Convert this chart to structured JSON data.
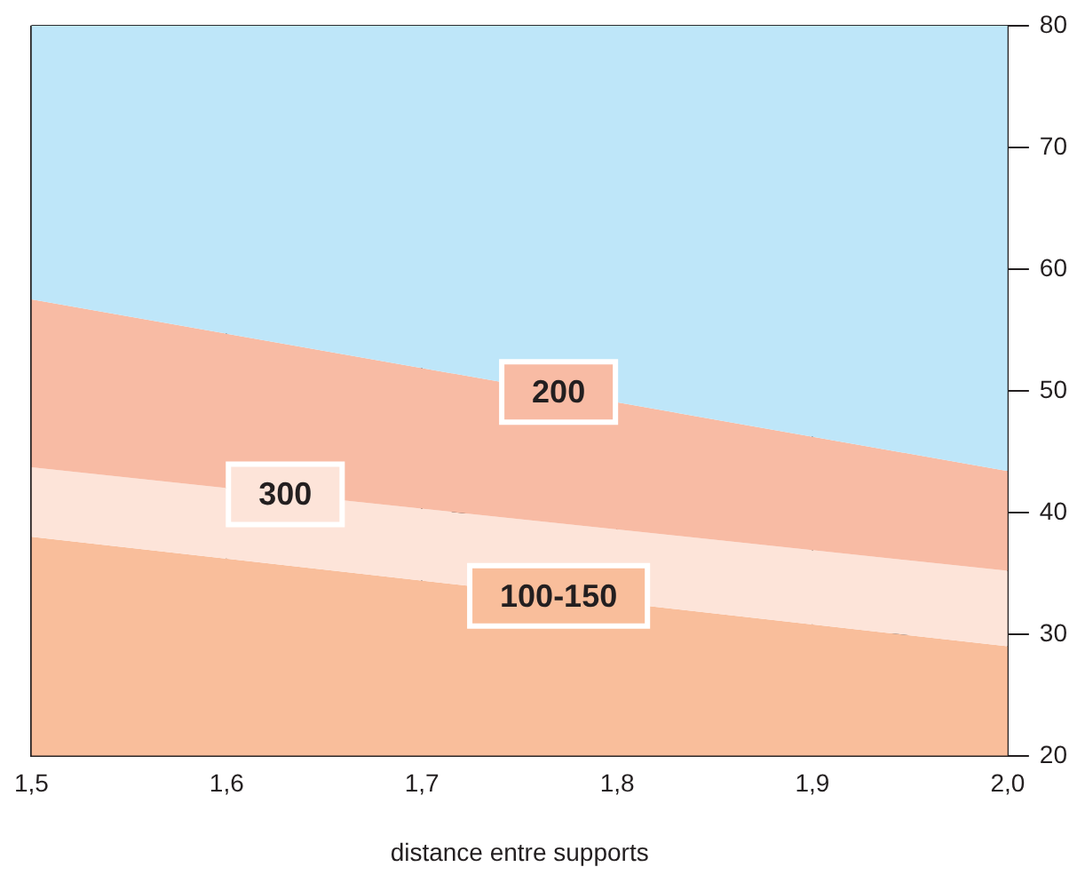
{
  "chart_data": {
    "type": "area",
    "xlabel": "distance entre supports",
    "x": [
      1.5,
      2.0
    ],
    "series": [
      {
        "name": "100-150",
        "color": "#f9be9b",
        "values": [
          38,
          29
        ]
      },
      {
        "name": "300",
        "color": "#fde4d9",
        "values": [
          43.7,
          35.2
        ]
      },
      {
        "name": "200",
        "color": "#f8bba4",
        "values": [
          57.5,
          43.4
        ]
      },
      {
        "color": "#bee6f9",
        "values": [
          80,
          80
        ]
      }
    ],
    "xlim": [
      1.5,
      2.0
    ],
    "xticks": [
      {
        "value": 1.5,
        "label": "1,5"
      },
      {
        "value": 1.6,
        "label": "1,6"
      },
      {
        "value": 1.7,
        "label": "1,7"
      },
      {
        "value": 1.8,
        "label": "1,8"
      },
      {
        "value": 1.9,
        "label": "1,9"
      },
      {
        "value": 2.0,
        "label": "2,0"
      }
    ],
    "ylim": [
      20,
      80
    ],
    "yticks": [
      20,
      30,
      40,
      50,
      60,
      70,
      80
    ],
    "grid": true,
    "legend": false
  }
}
